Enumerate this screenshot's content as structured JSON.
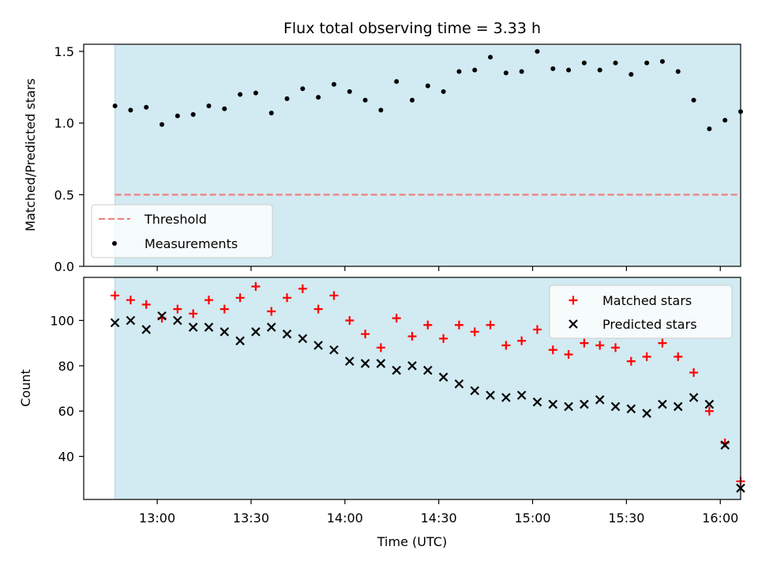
{
  "chart_data": {
    "title": "Flux total observing time = 3.33 h",
    "xlabel": "Time (UTC)",
    "x_tick_labels": [
      "13:00",
      "13:30",
      "14:00",
      "14:30",
      "15:00",
      "15:30",
      "16:00"
    ],
    "x_tick_minutes": [
      780,
      810,
      840,
      870,
      900,
      930,
      960
    ],
    "x_range_minutes": [
      756.5,
      966.5
    ],
    "observing_window_minutes": [
      766.5,
      966.5
    ],
    "colors": {
      "shade": "#add8e6",
      "threshold": "#f08080",
      "measurements": "#000000",
      "matched": "#ff0000",
      "predicted": "#000000"
    },
    "panels": [
      {
        "type": "scatter",
        "ylabel": "Matched/Predicted stars",
        "ylim": [
          0,
          1.55
        ],
        "y_tick_labels": [
          "0.0",
          "0.5",
          "1.0",
          "1.5"
        ],
        "y_ticks": [
          0,
          0.5,
          1.0,
          1.5
        ],
        "legend_position": "lower-left",
        "threshold": {
          "name": "Threshold",
          "value": 0.5
        },
        "series": [
          {
            "name": "Measurements",
            "x": [
              766.5,
              771.5,
              776.5,
              781.5,
              786.5,
              791.5,
              796.5,
              801.5,
              806.5,
              811.5,
              816.5,
              821.5,
              826.5,
              831.5,
              836.5,
              841.5,
              846.5,
              851.5,
              856.5,
              861.5,
              866.5,
              871.5,
              876.5,
              881.5,
              886.5,
              891.5,
              896.5,
              901.5,
              906.5,
              911.5,
              916.5,
              921.5,
              926.5,
              931.5,
              936.5,
              941.5,
              946.5,
              951.5,
              956.5,
              961.5,
              966.5
            ],
            "y": [
              1.12,
              1.09,
              1.11,
              0.99,
              1.05,
              1.06,
              1.12,
              1.1,
              1.2,
              1.21,
              1.07,
              1.17,
              1.24,
              1.18,
              1.27,
              1.22,
              1.16,
              1.09,
              1.29,
              1.16,
              1.26,
              1.22,
              1.36,
              1.37,
              1.46,
              1.35,
              1.36,
              1.5,
              1.38,
              1.37,
              1.42,
              1.37,
              1.42,
              1.34,
              1.42,
              1.43,
              1.36,
              1.16,
              0.96,
              1.02,
              1.08
            ]
          }
        ]
      },
      {
        "type": "scatter",
        "ylabel": "Count",
        "ylim": [
          21,
          119
        ],
        "y_tick_labels": [
          "40",
          "60",
          "80",
          "100"
        ],
        "y_ticks": [
          40,
          60,
          80,
          100
        ],
        "legend_position": "top-right",
        "series": [
          {
            "name": "Matched stars",
            "marker": "+",
            "x": [
              766.5,
              771.5,
              776.5,
              781.5,
              786.5,
              791.5,
              796.5,
              801.5,
              806.5,
              811.5,
              816.5,
              821.5,
              826.5,
              831.5,
              836.5,
              841.5,
              846.5,
              851.5,
              856.5,
              861.5,
              866.5,
              871.5,
              876.5,
              881.5,
              886.5,
              891.5,
              896.5,
              901.5,
              906.5,
              911.5,
              916.5,
              921.5,
              926.5,
              931.5,
              936.5,
              941.5,
              946.5,
              951.5,
              956.5,
              961.5,
              966.5
            ],
            "y": [
              111,
              109,
              107,
              101,
              105,
              103,
              109,
              105,
              110,
              115,
              104,
              110,
              114,
              105,
              111,
              100,
              94,
              88,
              101,
              93,
              98,
              92,
              98,
              95,
              98,
              89,
              91,
              96,
              87,
              85,
              90,
              89,
              88,
              82,
              84,
              90,
              84,
              77,
              60,
              46,
              29
            ]
          },
          {
            "name": "Predicted stars",
            "marker": "x",
            "x": [
              766.5,
              771.5,
              776.5,
              781.5,
              786.5,
              791.5,
              796.5,
              801.5,
              806.5,
              811.5,
              816.5,
              821.5,
              826.5,
              831.5,
              836.5,
              841.5,
              846.5,
              851.5,
              856.5,
              861.5,
              866.5,
              871.5,
              876.5,
              881.5,
              886.5,
              891.5,
              896.5,
              901.5,
              906.5,
              911.5,
              916.5,
              921.5,
              926.5,
              931.5,
              936.5,
              941.5,
              946.5,
              951.5,
              956.5,
              961.5,
              966.5
            ],
            "y": [
              99,
              100,
              96,
              102,
              100,
              97,
              97,
              95,
              91,
              95,
              97,
              94,
              92,
              89,
              87,
              82,
              81,
              81,
              78,
              80,
              78,
              75,
              72,
              69,
              67,
              66,
              67,
              64,
              63,
              62,
              63,
              65,
              62,
              61,
              59,
              63,
              62,
              66,
              63,
              45,
              26
            ]
          }
        ]
      }
    ]
  }
}
